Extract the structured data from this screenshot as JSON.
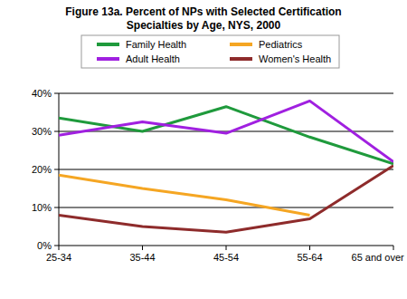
{
  "chart_data": {
    "type": "line",
    "title": "Figure 13a.  Percent of NPs with Selected Certification Specialties by Age, NYS, 2000",
    "categories": [
      "25-34",
      "35-44",
      "45-54",
      "55-64",
      "65 and over"
    ],
    "series": [
      {
        "name": "Family Health",
        "color": "#1f9a3c",
        "values": [
          33.5,
          30,
          36.5,
          28.5,
          21.5
        ]
      },
      {
        "name": "Adult Health",
        "color": "#a020e0",
        "values": [
          29,
          32.5,
          29.5,
          38,
          22
        ]
      },
      {
        "name": "Pediatrics",
        "color": "#f5a623",
        "values": [
          18.5,
          15,
          12,
          8,
          null
        ]
      },
      {
        "name": "Women's Health",
        "color": "#8e2b2b",
        "values": [
          8,
          5,
          3.5,
          7,
          21
        ]
      }
    ],
    "ylim": [
      0,
      40
    ],
    "yticks": [
      {
        "value": 0,
        "label": "0%"
      },
      {
        "value": 10,
        "label": "10%"
      },
      {
        "value": 20,
        "label": "20%"
      },
      {
        "value": 30,
        "label": "30%"
      },
      {
        "value": 40,
        "label": "40%"
      }
    ],
    "grid": true,
    "legend": "top"
  }
}
